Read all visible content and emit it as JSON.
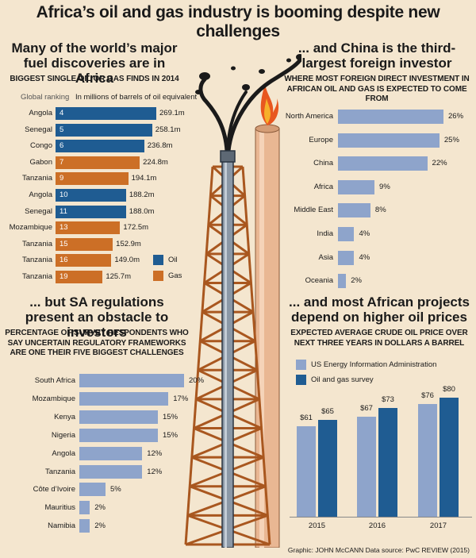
{
  "title": "Africa’s oil and gas industry is booming despite new challenges",
  "discoveries": {
    "heading": "Many of the world’s major fuel discoveries are in Africa",
    "subheading": "Biggest single oil or gas finds in 2014",
    "rank_label": "Global ranking",
    "unit_label": "In millions of barrels of oil equivalent",
    "legend": {
      "oil": "Oil",
      "gas": "Gas"
    },
    "colors": {
      "oil": "#1f5c92",
      "gas": "#cc6f26"
    }
  },
  "investors": {
    "heading": "... and China is the third-largest foreign investor",
    "subheading": "Where most foreign direct investment in African oil and gas is expected to come from"
  },
  "regulations": {
    "heading": "... but SA regulations present an obstacle to investors",
    "subheading": "Percentage of survey respondents who say uncertain regulatory frameworks are one their five biggest challenges"
  },
  "prices": {
    "heading": "... and most African projects depend on higher oil prices",
    "subheading": "Expected average crude oil price over next three years in dollars a barrel",
    "legend": {
      "us": "US Energy Information Administration",
      "survey": "Oil and gas survey"
    },
    "colors": {
      "us": "#8ea4cb",
      "survey": "#1f5c92"
    }
  },
  "credit": "Graphic: JOHN McCANN  Data source: PwC REVIEW (2015)",
  "chart_data": [
    {
      "type": "bar",
      "title": "Biggest single oil or gas finds in 2014",
      "unit": "millions of barrels of oil equivalent",
      "categories": [
        "Angola",
        "Senegal",
        "Congo",
        "Gabon",
        "Tanzania",
        "Angola",
        "Senegal",
        "Mozambique",
        "Tanzania",
        "Tanzania",
        "Tanzania"
      ],
      "ranks": [
        "4",
        "5",
        "6",
        "7",
        "9",
        "10",
        "11",
        "13",
        "15",
        "16",
        "19"
      ],
      "types": [
        "oil",
        "oil",
        "oil",
        "gas",
        "gas",
        "oil",
        "oil",
        "gas",
        "gas",
        "gas",
        "gas"
      ],
      "values": [
        269.1,
        258.1,
        236.8,
        224.8,
        194.1,
        188.2,
        188.0,
        172.5,
        152.9,
        149.0,
        125.7
      ],
      "value_labels": [
        "269.1m",
        "258.1m",
        "236.8m",
        "224.8m",
        "194.1m",
        "188.2m",
        "188.0m",
        "172.5m",
        "152.9m",
        "149.0m",
        "125.7m"
      ],
      "ylim": [
        0,
        280
      ]
    },
    {
      "type": "bar",
      "title": "Where most foreign direct investment in African oil and gas is expected to come from",
      "categories": [
        "North America",
        "Europe",
        "China",
        "Africa",
        "Middle East",
        "India",
        "Asia",
        "Oceania"
      ],
      "values": [
        26,
        25,
        22,
        9,
        8,
        4,
        4,
        2
      ],
      "value_labels": [
        "26%",
        "25%",
        "22%",
        "9%",
        "8%",
        "4%",
        "4%",
        "2%"
      ],
      "ylim": [
        0,
        30
      ]
    },
    {
      "type": "bar",
      "title": "Percentage of survey respondents who say uncertain regulatory frameworks are one their five biggest challenges",
      "categories": [
        "South Africa",
        "Mozambique",
        "Kenya",
        "Nigeria",
        "Angola",
        "Tanzania",
        "Côte d’Ivoire",
        "Mauritius",
        "Namibia"
      ],
      "values": [
        20,
        17,
        15,
        15,
        12,
        12,
        5,
        2,
        2
      ],
      "value_labels": [
        "20%",
        "17%",
        "15%",
        "15%",
        "12%",
        "12%",
        "5%",
        "2%",
        "2%"
      ],
      "ylim": [
        0,
        22
      ]
    },
    {
      "type": "bar",
      "title": "Expected average crude oil price over next three years in dollars a barrel",
      "categories": [
        "2015",
        "2016",
        "2017"
      ],
      "series": [
        {
          "name": "US Energy Information Administration",
          "values": [
            61,
            67,
            76
          ],
          "value_labels": [
            "$61",
            "$67",
            "$76"
          ]
        },
        {
          "name": "Oil and gas survey",
          "values": [
            65,
            73,
            80
          ],
          "value_labels": [
            "$65",
            "$73",
            "$80"
          ]
        }
      ],
      "ylim": [
        0,
        82
      ]
    }
  ]
}
